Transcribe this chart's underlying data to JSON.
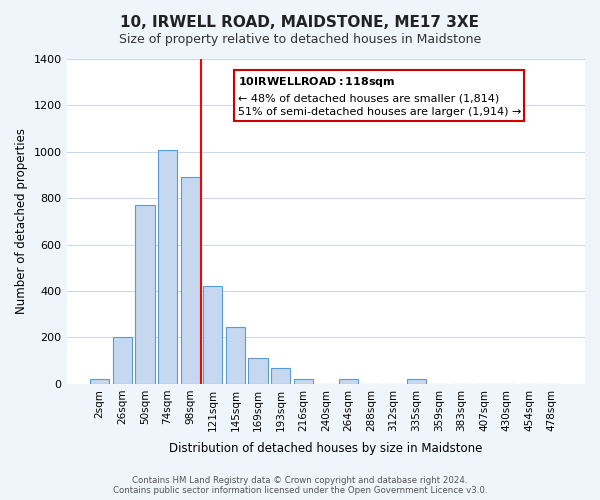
{
  "title": "10, IRWELL ROAD, MAIDSTONE, ME17 3XE",
  "subtitle": "Size of property relative to detached houses in Maidstone",
  "xlabel": "Distribution of detached houses by size in Maidstone",
  "ylabel": "Number of detached properties",
  "bar_labels": [
    "2sqm",
    "26sqm",
    "50sqm",
    "74sqm",
    "98sqm",
    "121sqm",
    "145sqm",
    "169sqm",
    "193sqm",
    "216sqm",
    "240sqm",
    "264sqm",
    "288sqm",
    "312sqm",
    "335sqm",
    "359sqm",
    "383sqm",
    "407sqm",
    "430sqm",
    "454sqm",
    "478sqm"
  ],
  "bar_values": [
    20,
    200,
    770,
    1010,
    890,
    420,
    245,
    110,
    70,
    20,
    0,
    20,
    0,
    0,
    20,
    0,
    0,
    0,
    0,
    0,
    0
  ],
  "bar_color": "#c5d8f0",
  "bar_edge_color": "#5b9bd5",
  "vline_x": 4,
  "vline_color": "red",
  "ylim": [
    0,
    1400
  ],
  "yticks": [
    0,
    200,
    400,
    600,
    800,
    1000,
    1200,
    1400
  ],
  "annotation_title": "10 IRWELL ROAD: 118sqm",
  "annotation_line1": "← 48% of detached houses are smaller (1,814)",
  "annotation_line2": "51% of semi-detached houses are larger (1,914) →",
  "footer_line1": "Contains HM Land Registry data © Crown copyright and database right 2024.",
  "footer_line2": "Contains public sector information licensed under the Open Government Licence v3.0.",
  "bg_color": "#f0f4fb",
  "plot_bg_color": "#ffffff",
  "grid_color": "#c8d8ec"
}
